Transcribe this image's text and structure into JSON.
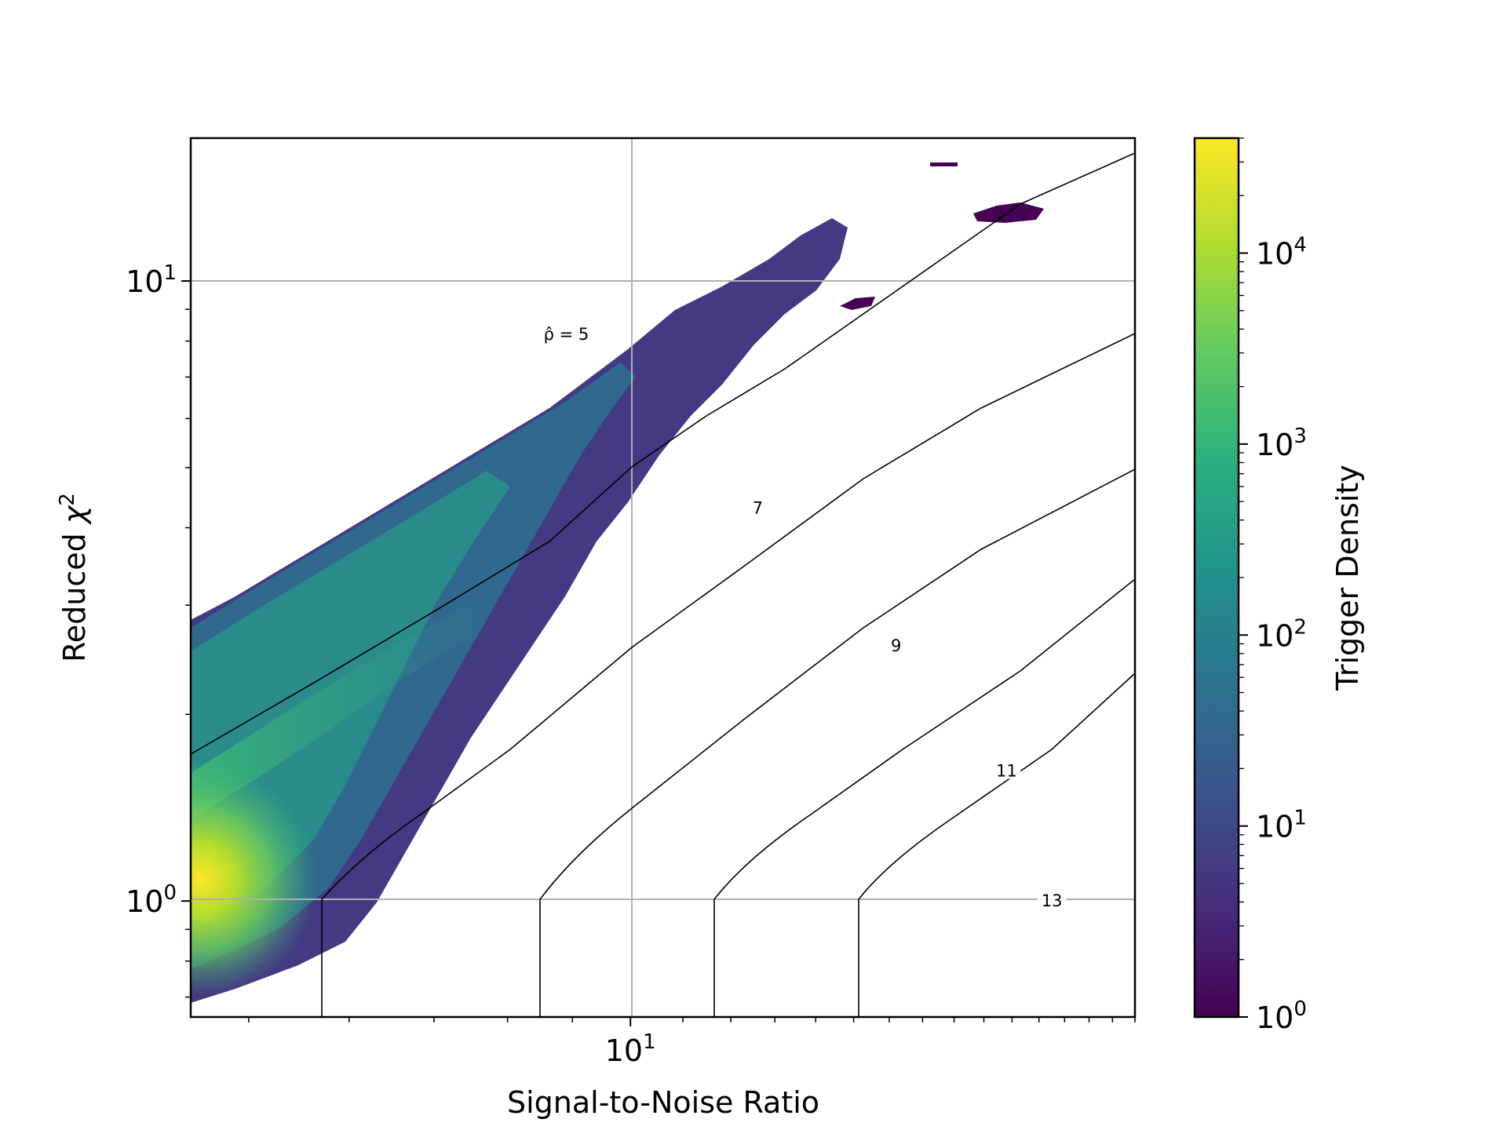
{
  "chart_data": {
    "type": "heatmap",
    "title": "",
    "xlabel": "Signal-to-Noise Ratio",
    "ylabel_prefix": "Reduced ",
    "ylabel_symbol": "χ",
    "ylabel_exp": "2",
    "x_scale": "log",
    "y_scale": "log",
    "xlim": [
      4.5,
      25
    ],
    "ylim": [
      0.65,
      17
    ],
    "grid": true,
    "x_ticks": [
      {
        "value": 10,
        "base": "10",
        "exp": "1"
      }
    ],
    "y_ticks": [
      {
        "value": 1,
        "base": "10",
        "exp": "0"
      },
      {
        "value": 10,
        "base": "10",
        "exp": "1"
      }
    ],
    "colorbar": {
      "label": "Trigger Density",
      "scale": "log",
      "colormap": "viridis",
      "range": [
        1,
        40000
      ],
      "ticks": [
        {
          "value": 1,
          "base": "10",
          "exp": "0"
        },
        {
          "value": 10,
          "base": "10",
          "exp": "1"
        },
        {
          "value": 100,
          "base": "10",
          "exp": "2"
        },
        {
          "value": 1000,
          "base": "10",
          "exp": "3"
        },
        {
          "value": 10000,
          "base": "10",
          "exp": "4"
        }
      ]
    },
    "density_peak": {
      "snr": 4.6,
      "chisq": 1.0
    },
    "contours": [
      {
        "label": "ρ̂ = 5",
        "value": 5,
        "label_at": [
          8.9,
          8.2
        ]
      },
      {
        "label": "7",
        "value": 7,
        "label_at": [
          12.6,
          4.3
        ]
      },
      {
        "label": "9",
        "value": 9,
        "label_at": [
          16.2,
          2.58
        ]
      },
      {
        "label": "11",
        "value": 11,
        "label_at": [
          19.8,
          1.62
        ]
      },
      {
        "label": "13",
        "value": 13,
        "label_at": [
          21.5,
          1.0
        ]
      }
    ]
  }
}
